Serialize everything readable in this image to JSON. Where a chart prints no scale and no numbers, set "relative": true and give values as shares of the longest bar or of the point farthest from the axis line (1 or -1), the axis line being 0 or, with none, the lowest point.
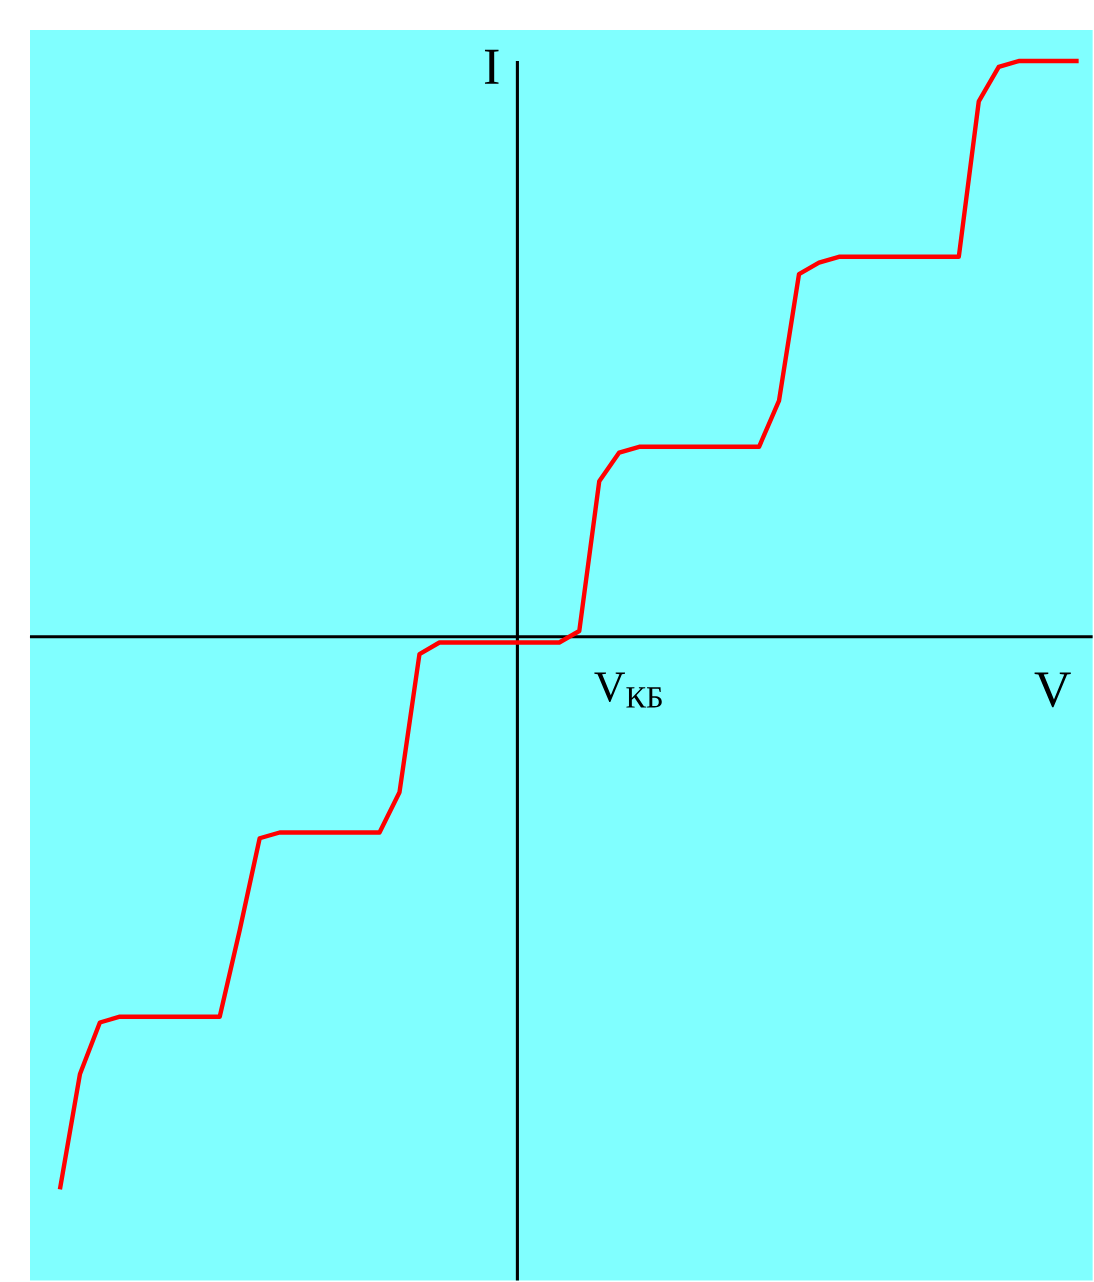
{
  "chart_data": {
    "type": "line",
    "relative": true,
    "xlabel": "V",
    "ylabel": "I",
    "annotations": [
      "V$_{КБ}$"
    ],
    "categories": [
      null,
      null,
      null,
      null,
      null,
      null,
      null,
      null,
      null,
      null,
      null,
      null,
      null,
      null,
      null,
      null,
      null,
      null,
      null,
      null,
      null,
      null,
      null,
      null,
      null,
      null,
      null,
      null,
      null,
      null,
      null,
      null,
      null,
      null,
      null,
      null,
      null,
      null,
      null,
      null,
      null,
      null,
      null,
      null,
      null,
      null,
      null,
      null,
      null,
      null,
      null,
      null
    ],
    "series": [
      {
        "color": "#ff0000",
        "values": [
          -0.96,
          -0.76,
          -0.67,
          -0.66,
          -0.66,
          -0.66,
          -0.66,
          -0.66,
          -0.66,
          -0.51,
          -0.35,
          -0.34,
          -0.34,
          -0.34,
          -0.34,
          -0.34,
          -0.34,
          -0.27,
          -0.03,
          -0.01,
          -0.01,
          -0.01,
          -0.01,
          -0.01,
          -0.01,
          -0.01,
          0.01,
          0.27,
          0.32,
          0.33,
          0.33,
          0.33,
          0.33,
          0.33,
          0.33,
          0.33,
          0.41,
          0.63,
          0.65,
          0.66,
          0.66,
          0.66,
          0.66,
          0.66,
          0.66,
          0.66,
          0.93,
          0.99,
          1.0,
          1.0,
          1.0,
          1.0
        ]
      }
    ]
  }
}
